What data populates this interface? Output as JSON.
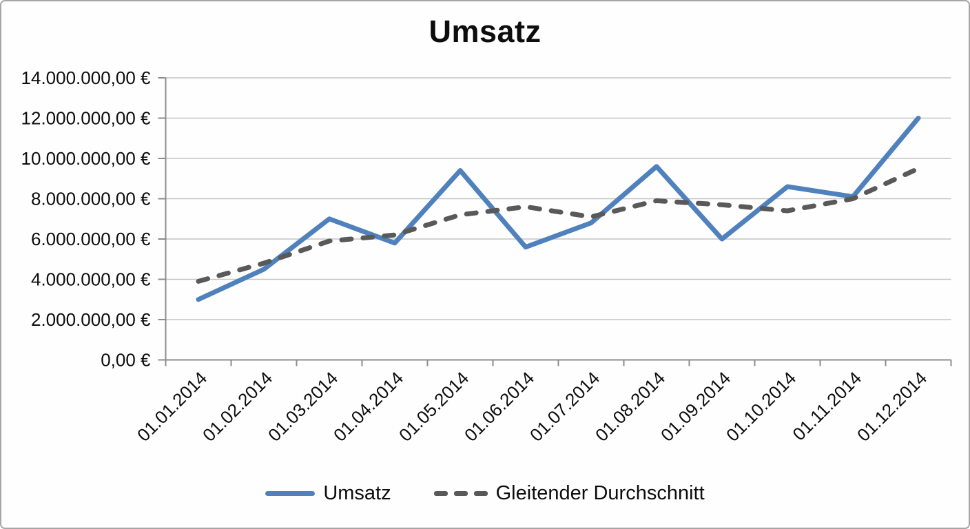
{
  "chart_data": {
    "type": "line",
    "title": "Umsatz",
    "categories": [
      "01.01.2014",
      "01.02.2014",
      "01.03.2014",
      "01.04.2014",
      "01.05.2014",
      "01.06.2014",
      "01.07.2014",
      "01.08.2014",
      "01.09.2014",
      "01.10.2014",
      "01.11.2014",
      "01.12.2014"
    ],
    "series": [
      {
        "name": "Umsatz",
        "style": "solid",
        "color": "#4f81bd",
        "values": [
          3000000,
          4500000,
          7000000,
          5800000,
          9400000,
          5600000,
          6800000,
          9600000,
          6000000,
          8600000,
          8100000,
          12000000
        ]
      },
      {
        "name": "Gleitender Durchschnitt",
        "style": "dashed",
        "color": "#595959",
        "values": [
          3900000,
          4800000,
          5900000,
          6200000,
          7200000,
          7600000,
          7100000,
          7900000,
          7700000,
          7400000,
          8000000,
          9500000
        ]
      }
    ],
    "ylim": [
      0,
      14000000
    ],
    "ytick_step": 2000000,
    "ytick_labels": [
      "0,00 €",
      "2.000.000,00 €",
      "4.000.000,00 €",
      "6.000.000,00 €",
      "8.000.000,00 €",
      "10.000.000,00 €",
      "12.000.000,00 €",
      "14.000.000,00 €"
    ],
    "grid": true,
    "legend_position": "bottom",
    "xlabel": "",
    "ylabel": ""
  },
  "colors": {
    "series_umsatz": "#4f81bd",
    "series_gleitender_durchschnitt": "#595959",
    "gridline": "#c3c3c3",
    "axis": "#8c8c8c",
    "text": "#0d0d0d",
    "border": "#a6a6a6"
  }
}
